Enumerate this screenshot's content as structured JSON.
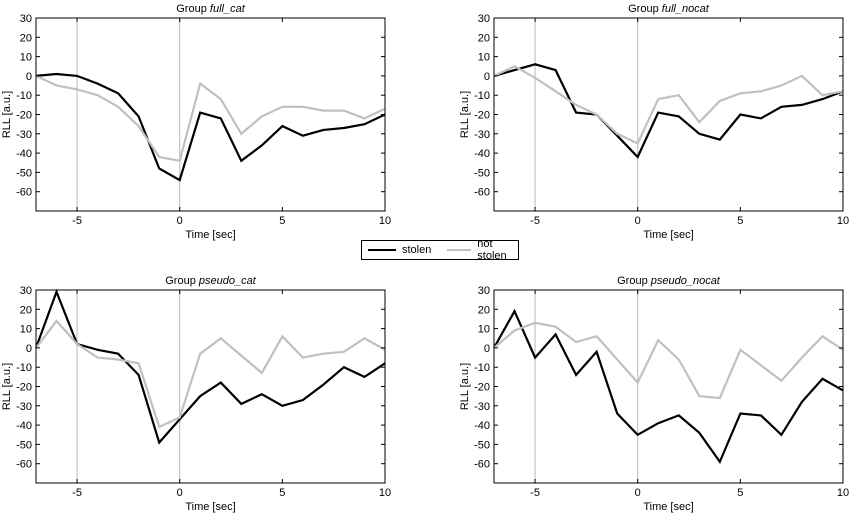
{
  "chart_data": [
    {
      "type": "line",
      "title_prefix": "Group ",
      "title_group": "full_cat",
      "xlabel": "Time [sec]",
      "ylabel": "RLL [a.u.]",
      "xlim": [
        -7,
        10
      ],
      "ylim": [
        -70,
        30
      ],
      "xticks": [
        -5,
        0,
        5,
        10
      ],
      "yticks": [
        -60,
        -50,
        -40,
        -30,
        -20,
        -10,
        0,
        10,
        20,
        30
      ],
      "vlines": [
        -5,
        0
      ],
      "x": [
        -7,
        -6,
        -5,
        -4,
        -3,
        -2,
        -1,
        0,
        1,
        2,
        3,
        4,
        5,
        6,
        7,
        8,
        9,
        10
      ],
      "series": [
        {
          "name": "stolen",
          "values": [
            0,
            1,
            0,
            -4,
            -9,
            -21,
            -48,
            -54,
            -19,
            -22,
            -44,
            -36,
            -26,
            -31,
            -28,
            -27,
            -25,
            -20
          ]
        },
        {
          "name": "not stolen",
          "values": [
            0,
            -5,
            -7,
            -10,
            -16,
            -26,
            -42,
            -44,
            -4,
            -12,
            -30,
            -21,
            -16,
            -16,
            -18,
            -18,
            -22,
            -17
          ]
        }
      ]
    },
    {
      "type": "line",
      "title_prefix": "Group ",
      "title_group": "full_nocat",
      "xlabel": "Time [sec]",
      "ylabel": "RLL [a.u.]",
      "xlim": [
        -7,
        10
      ],
      "ylim": [
        -70,
        30
      ],
      "xticks": [
        -5,
        0,
        5,
        10
      ],
      "yticks": [
        -60,
        -50,
        -40,
        -30,
        -20,
        -10,
        0,
        10,
        20,
        30
      ],
      "vlines": [
        -5,
        0
      ],
      "x": [
        -7,
        -6,
        -5,
        -4,
        -3,
        -2,
        -1,
        0,
        1,
        2,
        3,
        4,
        5,
        6,
        7,
        8,
        9,
        10
      ],
      "series": [
        {
          "name": "stolen",
          "values": [
            0,
            3,
            6,
            3,
            -19,
            -20,
            -31,
            -42,
            -19,
            -21,
            -30,
            -33,
            -20,
            -22,
            -16,
            -15,
            -12,
            -8
          ]
        },
        {
          "name": "not stolen",
          "values": [
            0,
            5,
            -1,
            -8,
            -15,
            -20,
            -30,
            -35,
            -12,
            -10,
            -24,
            -13,
            -9,
            -8,
            -5,
            0,
            -10,
            -8
          ]
        }
      ]
    },
    {
      "type": "line",
      "title_prefix": "Group ",
      "title_group": "pseudo_cat",
      "xlabel": "Time [sec]",
      "ylabel": "RLL [a.u.]",
      "xlim": [
        -7,
        10
      ],
      "ylim": [
        -70,
        30
      ],
      "xticks": [
        -5,
        0,
        5,
        10
      ],
      "yticks": [
        -60,
        -50,
        -40,
        -30,
        -20,
        -10,
        0,
        10,
        20,
        30
      ],
      "vlines": [
        -5,
        0
      ],
      "x": [
        -7,
        -6,
        -5,
        -4,
        -3,
        -2,
        -1,
        0,
        1,
        2,
        3,
        4,
        5,
        6,
        7,
        8,
        9,
        10
      ],
      "series": [
        {
          "name": "stolen",
          "values": [
            0,
            29,
            2,
            -1,
            -3,
            -14,
            -49,
            -37,
            -25,
            -18,
            -29,
            -24,
            -30,
            -27,
            -19,
            -10,
            -15,
            -8
          ]
        },
        {
          "name": "not stolen",
          "values": [
            0,
            14,
            2,
            -5,
            -6,
            -8,
            -41,
            -36,
            -3,
            5,
            -4,
            -13,
            6,
            -5,
            -3,
            -2,
            5,
            -1
          ]
        }
      ]
    },
    {
      "type": "line",
      "title_prefix": "Group ",
      "title_group": "pseudo_nocat",
      "xlabel": "Time [sec]",
      "ylabel": "RLL [a.u.]",
      "xlim": [
        -7,
        10
      ],
      "ylim": [
        -70,
        30
      ],
      "xticks": [
        -5,
        0,
        5,
        10
      ],
      "yticks": [
        -60,
        -50,
        -40,
        -30,
        -20,
        -10,
        0,
        10,
        20,
        30
      ],
      "vlines": [
        -5,
        0
      ],
      "x": [
        -7,
        -6,
        -5,
        -4,
        -3,
        -2,
        -1,
        0,
        1,
        2,
        3,
        4,
        5,
        6,
        7,
        8,
        9,
        10
      ],
      "series": [
        {
          "name": "stolen",
          "values": [
            0,
            19,
            -5,
            7,
            -14,
            -2,
            -34,
            -45,
            -39,
            -35,
            -44,
            -59,
            -34,
            -35,
            -45,
            -28,
            -16,
            -22
          ]
        },
        {
          "name": "not stolen",
          "values": [
            0,
            9,
            13,
            11,
            3,
            6,
            -6,
            -18,
            4,
            -6,
            -25,
            -26,
            -1,
            -9,
            -17,
            -5,
            6,
            -1
          ]
        }
      ]
    }
  ],
  "legend": {
    "items": [
      {
        "label": "stolen",
        "color": "#000000"
      },
      {
        "label": "not stolen",
        "color": "#c0c0c0"
      }
    ]
  },
  "colors": {
    "stolen": "#000000",
    "not_stolen": "#c0c0c0",
    "vline": "#b8b8b8",
    "axis": "#000000"
  }
}
